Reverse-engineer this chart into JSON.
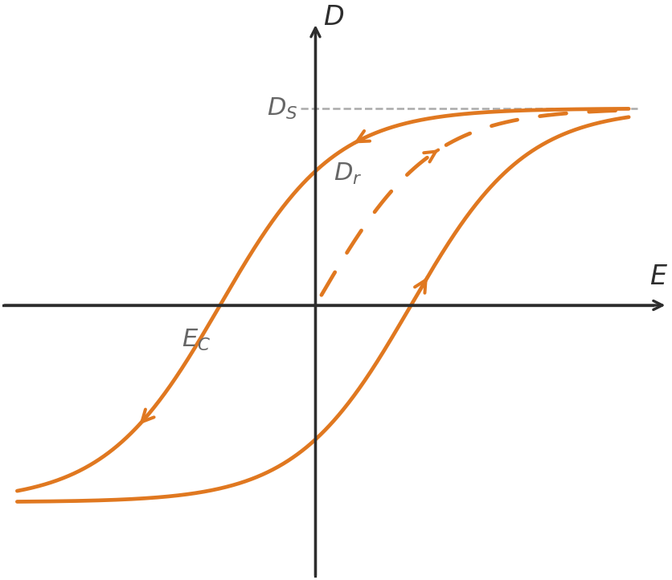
{
  "orange_color": "#E07820",
  "axis_color": "#2d2d2d",
  "dashed_line_color": "#aaaaaa",
  "background_color": "#ffffff",
  "Ds": 0.78,
  "k": 2.6,
  "shift_upper": -0.32,
  "shift_lower": 0.32,
  "figsize": [
    8.36,
    7.22
  ],
  "dpi": 100,
  "lw": 3.4,
  "axis_lw": 2.4,
  "label_color": "#666666",
  "label_fontsize": 22,
  "axis_label_fontsize": 24
}
